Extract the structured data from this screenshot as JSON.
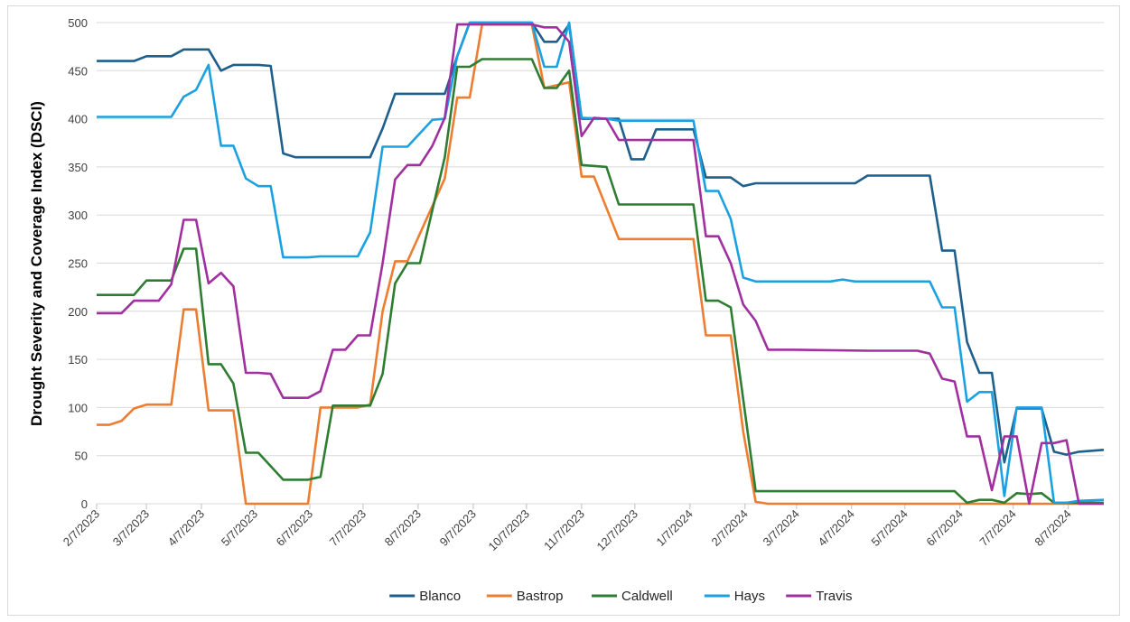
{
  "chart_data": {
    "type": "line",
    "title": "",
    "xlabel": "",
    "ylabel": "Drought Severity and Coverage Index (DSCI)",
    "ylim": [
      0,
      500
    ],
    "yticks": [
      0,
      50,
      100,
      150,
      200,
      250,
      300,
      350,
      400,
      450,
      500
    ],
    "grid": true,
    "legend": "bottom",
    "x_tick_labels": [
      "2/7/2023",
      "3/7/2023",
      "4/7/2023",
      "5/7/2023",
      "6/7/2023",
      "7/7/2023",
      "8/7/2023",
      "9/7/2023",
      "10/7/2023",
      "11/7/2023",
      "12/7/2023",
      "1/7/2024",
      "2/7/2024",
      "3/7/2024",
      "4/7/2024",
      "5/7/2024",
      "6/7/2024",
      "7/7/2024",
      "8/7/2024"
    ],
    "series": [
      {
        "name": "Blanco",
        "color": "#1f5f8b",
        "points": [
          [
            "2023-02-07",
            460
          ],
          [
            "2023-02-28",
            460
          ],
          [
            "2023-03-07",
            465
          ],
          [
            "2023-03-21",
            465
          ],
          [
            "2023-03-28",
            472
          ],
          [
            "2023-04-11",
            472
          ],
          [
            "2023-04-18",
            450
          ],
          [
            "2023-04-25",
            456
          ],
          [
            "2023-05-09",
            456
          ],
          [
            "2023-05-16",
            455
          ],
          [
            "2023-05-23",
            364
          ],
          [
            "2023-05-30",
            360
          ],
          [
            "2023-07-11",
            360
          ],
          [
            "2023-07-18",
            390
          ],
          [
            "2023-07-25",
            426
          ],
          [
            "2023-08-22",
            426
          ],
          [
            "2023-08-29",
            465
          ],
          [
            "2023-09-05",
            500
          ],
          [
            "2023-10-10",
            500
          ],
          [
            "2023-10-17",
            480
          ],
          [
            "2023-10-24",
            480
          ],
          [
            "2023-10-31",
            498
          ],
          [
            "2023-11-07",
            400
          ],
          [
            "2023-11-28",
            400
          ],
          [
            "2023-12-05",
            358
          ],
          [
            "2023-12-12",
            358
          ],
          [
            "2023-12-19",
            389
          ],
          [
            "2024-01-09",
            389
          ],
          [
            "2024-01-16",
            339
          ],
          [
            "2024-01-30",
            339
          ],
          [
            "2024-02-06",
            330
          ],
          [
            "2024-02-13",
            333
          ],
          [
            "2024-04-09",
            333
          ],
          [
            "2024-04-16",
            341
          ],
          [
            "2024-05-21",
            341
          ],
          [
            "2024-05-28",
            263
          ],
          [
            "2024-06-04",
            263
          ],
          [
            "2024-06-11",
            168
          ],
          [
            "2024-06-18",
            136
          ],
          [
            "2024-06-25",
            136
          ],
          [
            "2024-07-02",
            43
          ],
          [
            "2024-07-09",
            99
          ],
          [
            "2024-07-23",
            99
          ],
          [
            "2024-07-30",
            54
          ],
          [
            "2024-08-06",
            51
          ],
          [
            "2024-08-13",
            54
          ],
          [
            "2024-08-27",
            56
          ]
        ]
      },
      {
        "name": "Bastrop",
        "color": "#ed7d31",
        "points": [
          [
            "2023-02-07",
            82
          ],
          [
            "2023-02-14",
            82
          ],
          [
            "2023-02-21",
            86
          ],
          [
            "2023-02-28",
            99
          ],
          [
            "2023-03-07",
            103
          ],
          [
            "2023-03-21",
            103
          ],
          [
            "2023-03-28",
            202
          ],
          [
            "2023-04-04",
            202
          ],
          [
            "2023-04-11",
            97
          ],
          [
            "2023-04-25",
            97
          ],
          [
            "2023-05-02",
            0
          ],
          [
            "2023-06-06",
            0
          ],
          [
            "2023-06-13",
            100
          ],
          [
            "2023-07-04",
            100
          ],
          [
            "2023-07-11",
            103
          ],
          [
            "2023-07-18",
            200
          ],
          [
            "2023-07-25",
            252
          ],
          [
            "2023-08-01",
            252
          ],
          [
            "2023-08-22",
            338
          ],
          [
            "2023-08-29",
            422
          ],
          [
            "2023-09-05",
            422
          ],
          [
            "2023-09-12",
            498
          ],
          [
            "2023-10-10",
            498
          ],
          [
            "2023-10-17",
            432
          ],
          [
            "2023-10-31",
            438
          ],
          [
            "2023-11-07",
            340
          ],
          [
            "2023-11-14",
            340
          ],
          [
            "2023-11-28",
            275
          ],
          [
            "2024-01-09",
            275
          ],
          [
            "2024-01-16",
            175
          ],
          [
            "2024-01-30",
            175
          ],
          [
            "2024-02-06",
            75
          ],
          [
            "2024-02-13",
            2
          ],
          [
            "2024-02-20",
            0
          ],
          [
            "2024-08-27",
            0
          ]
        ]
      },
      {
        "name": "Caldwell",
        "color": "#2e7d32",
        "points": [
          [
            "2023-02-07",
            217
          ],
          [
            "2023-02-28",
            217
          ],
          [
            "2023-03-07",
            232
          ],
          [
            "2023-03-21",
            232
          ],
          [
            "2023-03-28",
            265
          ],
          [
            "2023-04-04",
            265
          ],
          [
            "2023-04-11",
            145
          ],
          [
            "2023-04-18",
            145
          ],
          [
            "2023-04-25",
            125
          ],
          [
            "2023-05-02",
            53
          ],
          [
            "2023-05-09",
            53
          ],
          [
            "2023-05-23",
            25
          ],
          [
            "2023-06-06",
            25
          ],
          [
            "2023-06-13",
            28
          ],
          [
            "2023-06-20",
            102
          ],
          [
            "2023-07-11",
            102
          ],
          [
            "2023-07-18",
            135
          ],
          [
            "2023-07-25",
            229
          ],
          [
            "2023-08-01",
            250
          ],
          [
            "2023-08-08",
            250
          ],
          [
            "2023-08-22",
            360
          ],
          [
            "2023-08-29",
            454
          ],
          [
            "2023-09-05",
            454
          ],
          [
            "2023-09-12",
            462
          ],
          [
            "2023-10-10",
            462
          ],
          [
            "2023-10-17",
            432
          ],
          [
            "2023-10-24",
            432
          ],
          [
            "2023-10-31",
            450
          ],
          [
            "2023-11-07",
            352
          ],
          [
            "2023-11-21",
            350
          ],
          [
            "2023-11-28",
            311
          ],
          [
            "2024-01-09",
            311
          ],
          [
            "2024-01-16",
            211
          ],
          [
            "2024-01-23",
            211
          ],
          [
            "2024-01-30",
            204
          ],
          [
            "2024-02-13",
            13
          ],
          [
            "2024-06-04",
            13
          ],
          [
            "2024-06-11",
            1
          ],
          [
            "2024-06-18",
            4
          ],
          [
            "2024-06-25",
            4
          ],
          [
            "2024-07-02",
            1
          ],
          [
            "2024-07-09",
            11
          ],
          [
            "2024-07-16",
            10
          ],
          [
            "2024-07-23",
            11
          ],
          [
            "2024-07-30",
            1
          ],
          [
            "2024-08-27",
            1
          ]
        ]
      },
      {
        "name": "Hays",
        "color": "#1ba1e2",
        "points": [
          [
            "2023-02-07",
            402
          ],
          [
            "2023-03-21",
            402
          ],
          [
            "2023-03-28",
            423
          ],
          [
            "2023-04-04",
            430
          ],
          [
            "2023-04-11",
            456
          ],
          [
            "2023-04-18",
            372
          ],
          [
            "2023-04-25",
            372
          ],
          [
            "2023-05-02",
            338
          ],
          [
            "2023-05-09",
            330
          ],
          [
            "2023-05-16",
            330
          ],
          [
            "2023-05-23",
            256
          ],
          [
            "2023-06-06",
            256
          ],
          [
            "2023-06-13",
            257
          ],
          [
            "2023-07-04",
            257
          ],
          [
            "2023-07-11",
            282
          ],
          [
            "2023-07-18",
            371
          ],
          [
            "2023-07-25",
            371
          ],
          [
            "2023-08-01",
            371
          ],
          [
            "2023-08-15",
            399
          ],
          [
            "2023-08-22",
            400
          ],
          [
            "2023-08-29",
            465
          ],
          [
            "2023-09-05",
            500
          ],
          [
            "2023-10-10",
            500
          ],
          [
            "2023-10-17",
            454
          ],
          [
            "2023-10-24",
            454
          ],
          [
            "2023-10-31",
            500
          ],
          [
            "2023-11-07",
            401
          ],
          [
            "2023-11-21",
            400
          ],
          [
            "2023-11-28",
            398
          ],
          [
            "2024-01-09",
            398
          ],
          [
            "2024-01-16",
            325
          ],
          [
            "2024-01-23",
            325
          ],
          [
            "2024-01-30",
            296
          ],
          [
            "2024-02-06",
            235
          ],
          [
            "2024-02-13",
            231
          ],
          [
            "2024-03-26",
            231
          ],
          [
            "2024-04-02",
            233
          ],
          [
            "2024-04-09",
            231
          ],
          [
            "2024-05-21",
            231
          ],
          [
            "2024-05-28",
            204
          ],
          [
            "2024-06-04",
            204
          ],
          [
            "2024-06-11",
            106
          ],
          [
            "2024-06-18",
            116
          ],
          [
            "2024-06-25",
            116
          ],
          [
            "2024-07-02",
            8
          ],
          [
            "2024-07-09",
            100
          ],
          [
            "2024-07-23",
            100
          ],
          [
            "2024-07-30",
            1
          ],
          [
            "2024-08-06",
            1
          ],
          [
            "2024-08-13",
            3
          ],
          [
            "2024-08-27",
            4
          ]
        ]
      },
      {
        "name": "Travis",
        "color": "#a0309f",
        "points": [
          [
            "2023-02-07",
            198
          ],
          [
            "2023-02-21",
            198
          ],
          [
            "2023-02-28",
            211
          ],
          [
            "2023-03-14",
            211
          ],
          [
            "2023-03-21",
            228
          ],
          [
            "2023-03-28",
            295
          ],
          [
            "2023-04-04",
            295
          ],
          [
            "2023-04-11",
            229
          ],
          [
            "2023-04-18",
            240
          ],
          [
            "2023-04-25",
            226
          ],
          [
            "2023-05-02",
            136
          ],
          [
            "2023-05-09",
            136
          ],
          [
            "2023-05-16",
            135
          ],
          [
            "2023-05-23",
            110
          ],
          [
            "2023-06-06",
            110
          ],
          [
            "2023-06-13",
            117
          ],
          [
            "2023-06-20",
            160
          ],
          [
            "2023-06-27",
            160
          ],
          [
            "2023-07-04",
            175
          ],
          [
            "2023-07-11",
            175
          ],
          [
            "2023-07-18",
            250
          ],
          [
            "2023-07-25",
            337
          ],
          [
            "2023-08-01",
            352
          ],
          [
            "2023-08-08",
            352
          ],
          [
            "2023-08-15",
            372
          ],
          [
            "2023-08-22",
            401
          ],
          [
            "2023-08-29",
            498
          ],
          [
            "2023-10-10",
            498
          ],
          [
            "2023-10-17",
            495
          ],
          [
            "2023-10-24",
            495
          ],
          [
            "2023-10-31",
            480
          ],
          [
            "2023-11-07",
            382
          ],
          [
            "2023-11-14",
            401
          ],
          [
            "2023-11-21",
            400
          ],
          [
            "2023-11-28",
            378
          ],
          [
            "2024-01-09",
            378
          ],
          [
            "2024-01-16",
            278
          ],
          [
            "2024-01-23",
            278
          ],
          [
            "2024-01-30",
            250
          ],
          [
            "2024-02-06",
            207
          ],
          [
            "2024-02-13",
            190
          ],
          [
            "2024-02-20",
            160
          ],
          [
            "2024-03-05",
            160
          ],
          [
            "2024-04-16",
            159
          ],
          [
            "2024-05-14",
            159
          ],
          [
            "2024-05-21",
            156
          ],
          [
            "2024-05-28",
            130
          ],
          [
            "2024-06-04",
            127
          ],
          [
            "2024-06-11",
            70
          ],
          [
            "2024-06-18",
            70
          ],
          [
            "2024-06-25",
            14
          ],
          [
            "2024-07-02",
            70
          ],
          [
            "2024-07-09",
            70
          ],
          [
            "2024-07-16",
            0
          ],
          [
            "2024-07-23",
            63
          ],
          [
            "2024-07-30",
            63
          ],
          [
            "2024-08-06",
            66
          ],
          [
            "2024-08-13",
            0
          ],
          [
            "2024-08-27",
            0
          ]
        ]
      }
    ]
  }
}
